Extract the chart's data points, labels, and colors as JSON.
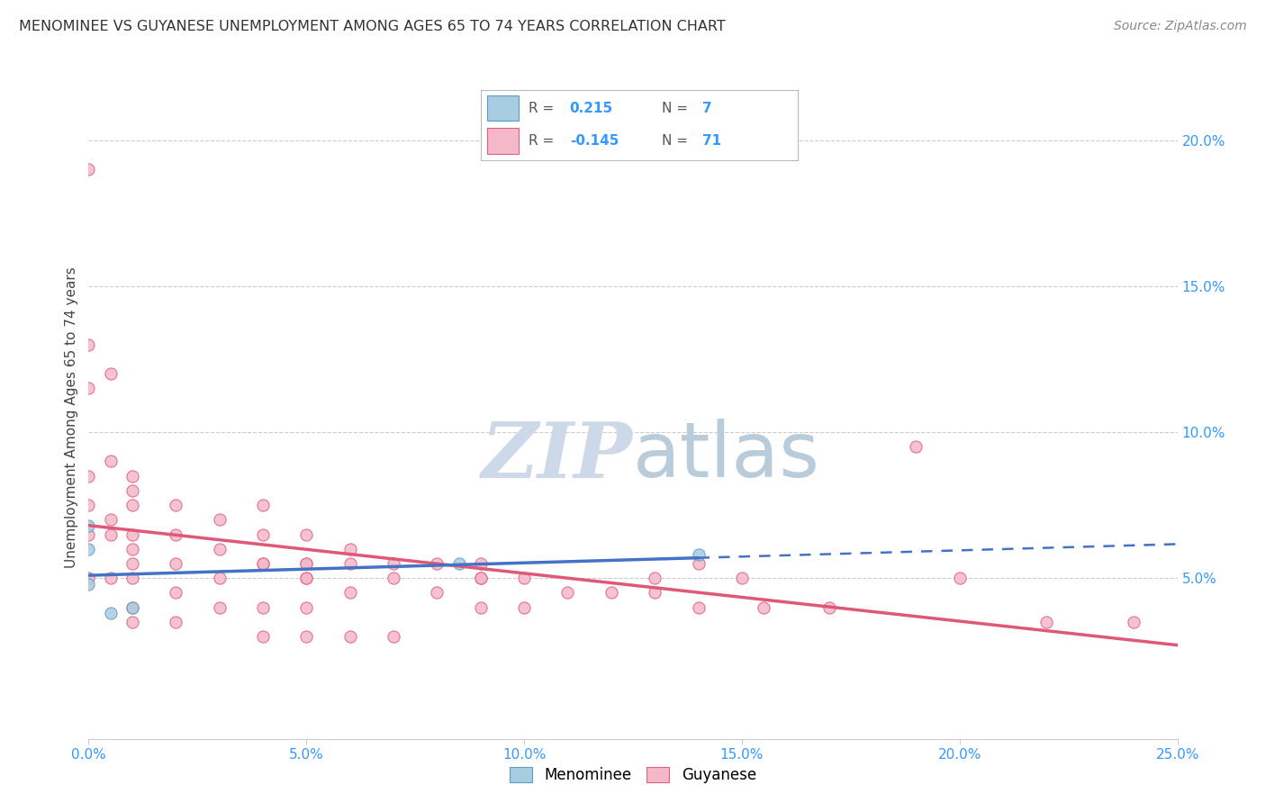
{
  "title": "MENOMINEE VS GUYANESE UNEMPLOYMENT AMONG AGES 65 TO 74 YEARS CORRELATION CHART",
  "source": "Source: ZipAtlas.com",
  "ylabel_label": "Unemployment Among Ages 65 to 74 years",
  "xlim": [
    0.0,
    0.25
  ],
  "ylim": [
    -0.005,
    0.215
  ],
  "xtick_labels": [
    "0.0%",
    "5.0%",
    "10.0%",
    "15.0%",
    "20.0%",
    "25.0%"
  ],
  "xtick_vals": [
    0.0,
    0.05,
    0.1,
    0.15,
    0.2,
    0.25
  ],
  "right_ytick_labels": [
    "5.0%",
    "10.0%",
    "15.0%",
    "20.0%"
  ],
  "right_ytick_vals": [
    0.05,
    0.1,
    0.15,
    0.2
  ],
  "menominee_R": "0.215",
  "menominee_N": "7",
  "guyanese_R": "-0.145",
  "guyanese_N": "71",
  "menominee_color": "#a8cce0",
  "guyanese_color": "#f4b8c8",
  "menominee_edge_color": "#5b9dc9",
  "guyanese_edge_color": "#e06080",
  "menominee_line_color": "#4472c4",
  "guyanese_line_color": "#e05878",
  "background_color": "#ffffff",
  "grid_color": "#cccccc",
  "watermark_text_color": "#cdd8e8",
  "menominee_x": [
    0.0,
    0.0,
    0.0,
    0.005,
    0.01,
    0.085,
    0.14
  ],
  "menominee_y": [
    0.06,
    0.068,
    0.048,
    0.038,
    0.04,
    0.055,
    0.058
  ],
  "guyanese_x": [
    0.0,
    0.0,
    0.0,
    0.0,
    0.0,
    0.0,
    0.0,
    0.005,
    0.005,
    0.005,
    0.005,
    0.005,
    0.01,
    0.01,
    0.01,
    0.01,
    0.01,
    0.01,
    0.01,
    0.01,
    0.01,
    0.02,
    0.02,
    0.02,
    0.02,
    0.02,
    0.03,
    0.03,
    0.03,
    0.03,
    0.04,
    0.04,
    0.04,
    0.04,
    0.05,
    0.05,
    0.05,
    0.05,
    0.06,
    0.06,
    0.06,
    0.07,
    0.07,
    0.08,
    0.08,
    0.09,
    0.09,
    0.09,
    0.1,
    0.1,
    0.11,
    0.12,
    0.13,
    0.14,
    0.15,
    0.155,
    0.17,
    0.19,
    0.2,
    0.22,
    0.24,
    0.04,
    0.05,
    0.14,
    0.05,
    0.09,
    0.13,
    0.04,
    0.05,
    0.06,
    0.07
  ],
  "guyanese_y": [
    0.19,
    0.13,
    0.115,
    0.085,
    0.075,
    0.065,
    0.05,
    0.12,
    0.09,
    0.07,
    0.065,
    0.05,
    0.085,
    0.08,
    0.075,
    0.065,
    0.06,
    0.055,
    0.05,
    0.04,
    0.035,
    0.075,
    0.065,
    0.055,
    0.045,
    0.035,
    0.07,
    0.06,
    0.05,
    0.04,
    0.075,
    0.065,
    0.055,
    0.04,
    0.065,
    0.055,
    0.05,
    0.04,
    0.06,
    0.055,
    0.045,
    0.055,
    0.05,
    0.055,
    0.045,
    0.055,
    0.05,
    0.04,
    0.05,
    0.04,
    0.045,
    0.045,
    0.045,
    0.04,
    0.05,
    0.04,
    0.04,
    0.095,
    0.05,
    0.035,
    0.035,
    0.055,
    0.055,
    0.055,
    0.05,
    0.05,
    0.05,
    0.03,
    0.03,
    0.03,
    0.03
  ]
}
